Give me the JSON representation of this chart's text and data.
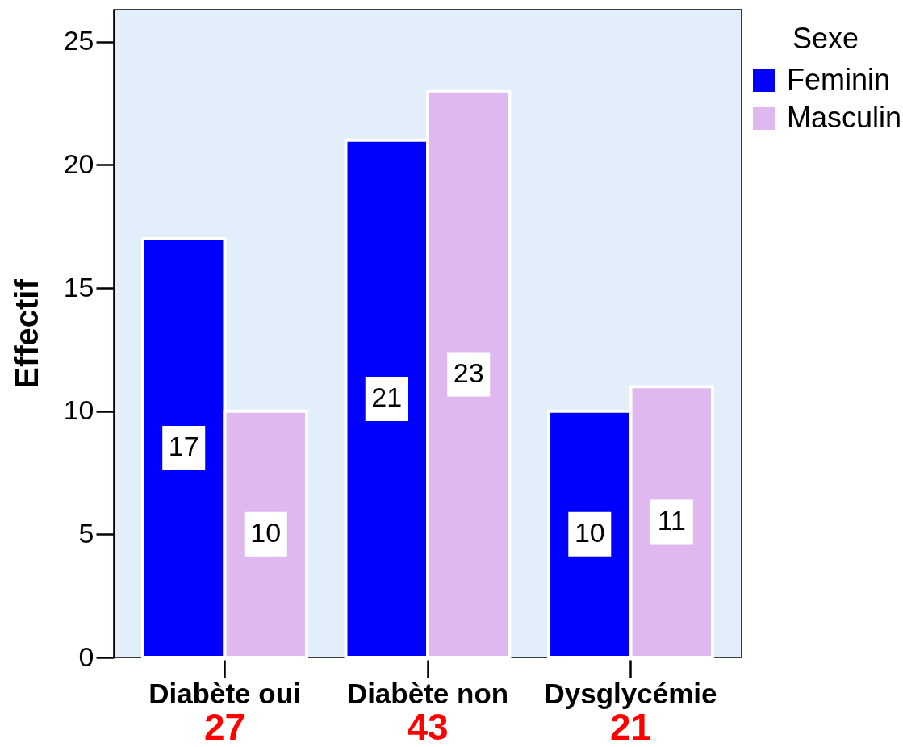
{
  "chart_data": {
    "type": "bar",
    "ylabel": "Effectif",
    "legend_title": "Sexe",
    "categories": [
      "Diabète oui",
      "Diabète non",
      "Dysglycémie"
    ],
    "series": [
      {
        "name": "Feminin",
        "color": "#0000ff",
        "values": [
          17,
          21,
          10
        ]
      },
      {
        "name": "Masculin",
        "color": "#dfb8f0",
        "values": [
          10,
          23,
          11
        ]
      }
    ],
    "ylim": [
      0,
      26.3
    ],
    "yticks": [
      0,
      5,
      10,
      15,
      20,
      25
    ],
    "data_labels": true,
    "totals": [
      "27",
      "43",
      "21"
    ],
    "legend": "right",
    "grid": false
  }
}
